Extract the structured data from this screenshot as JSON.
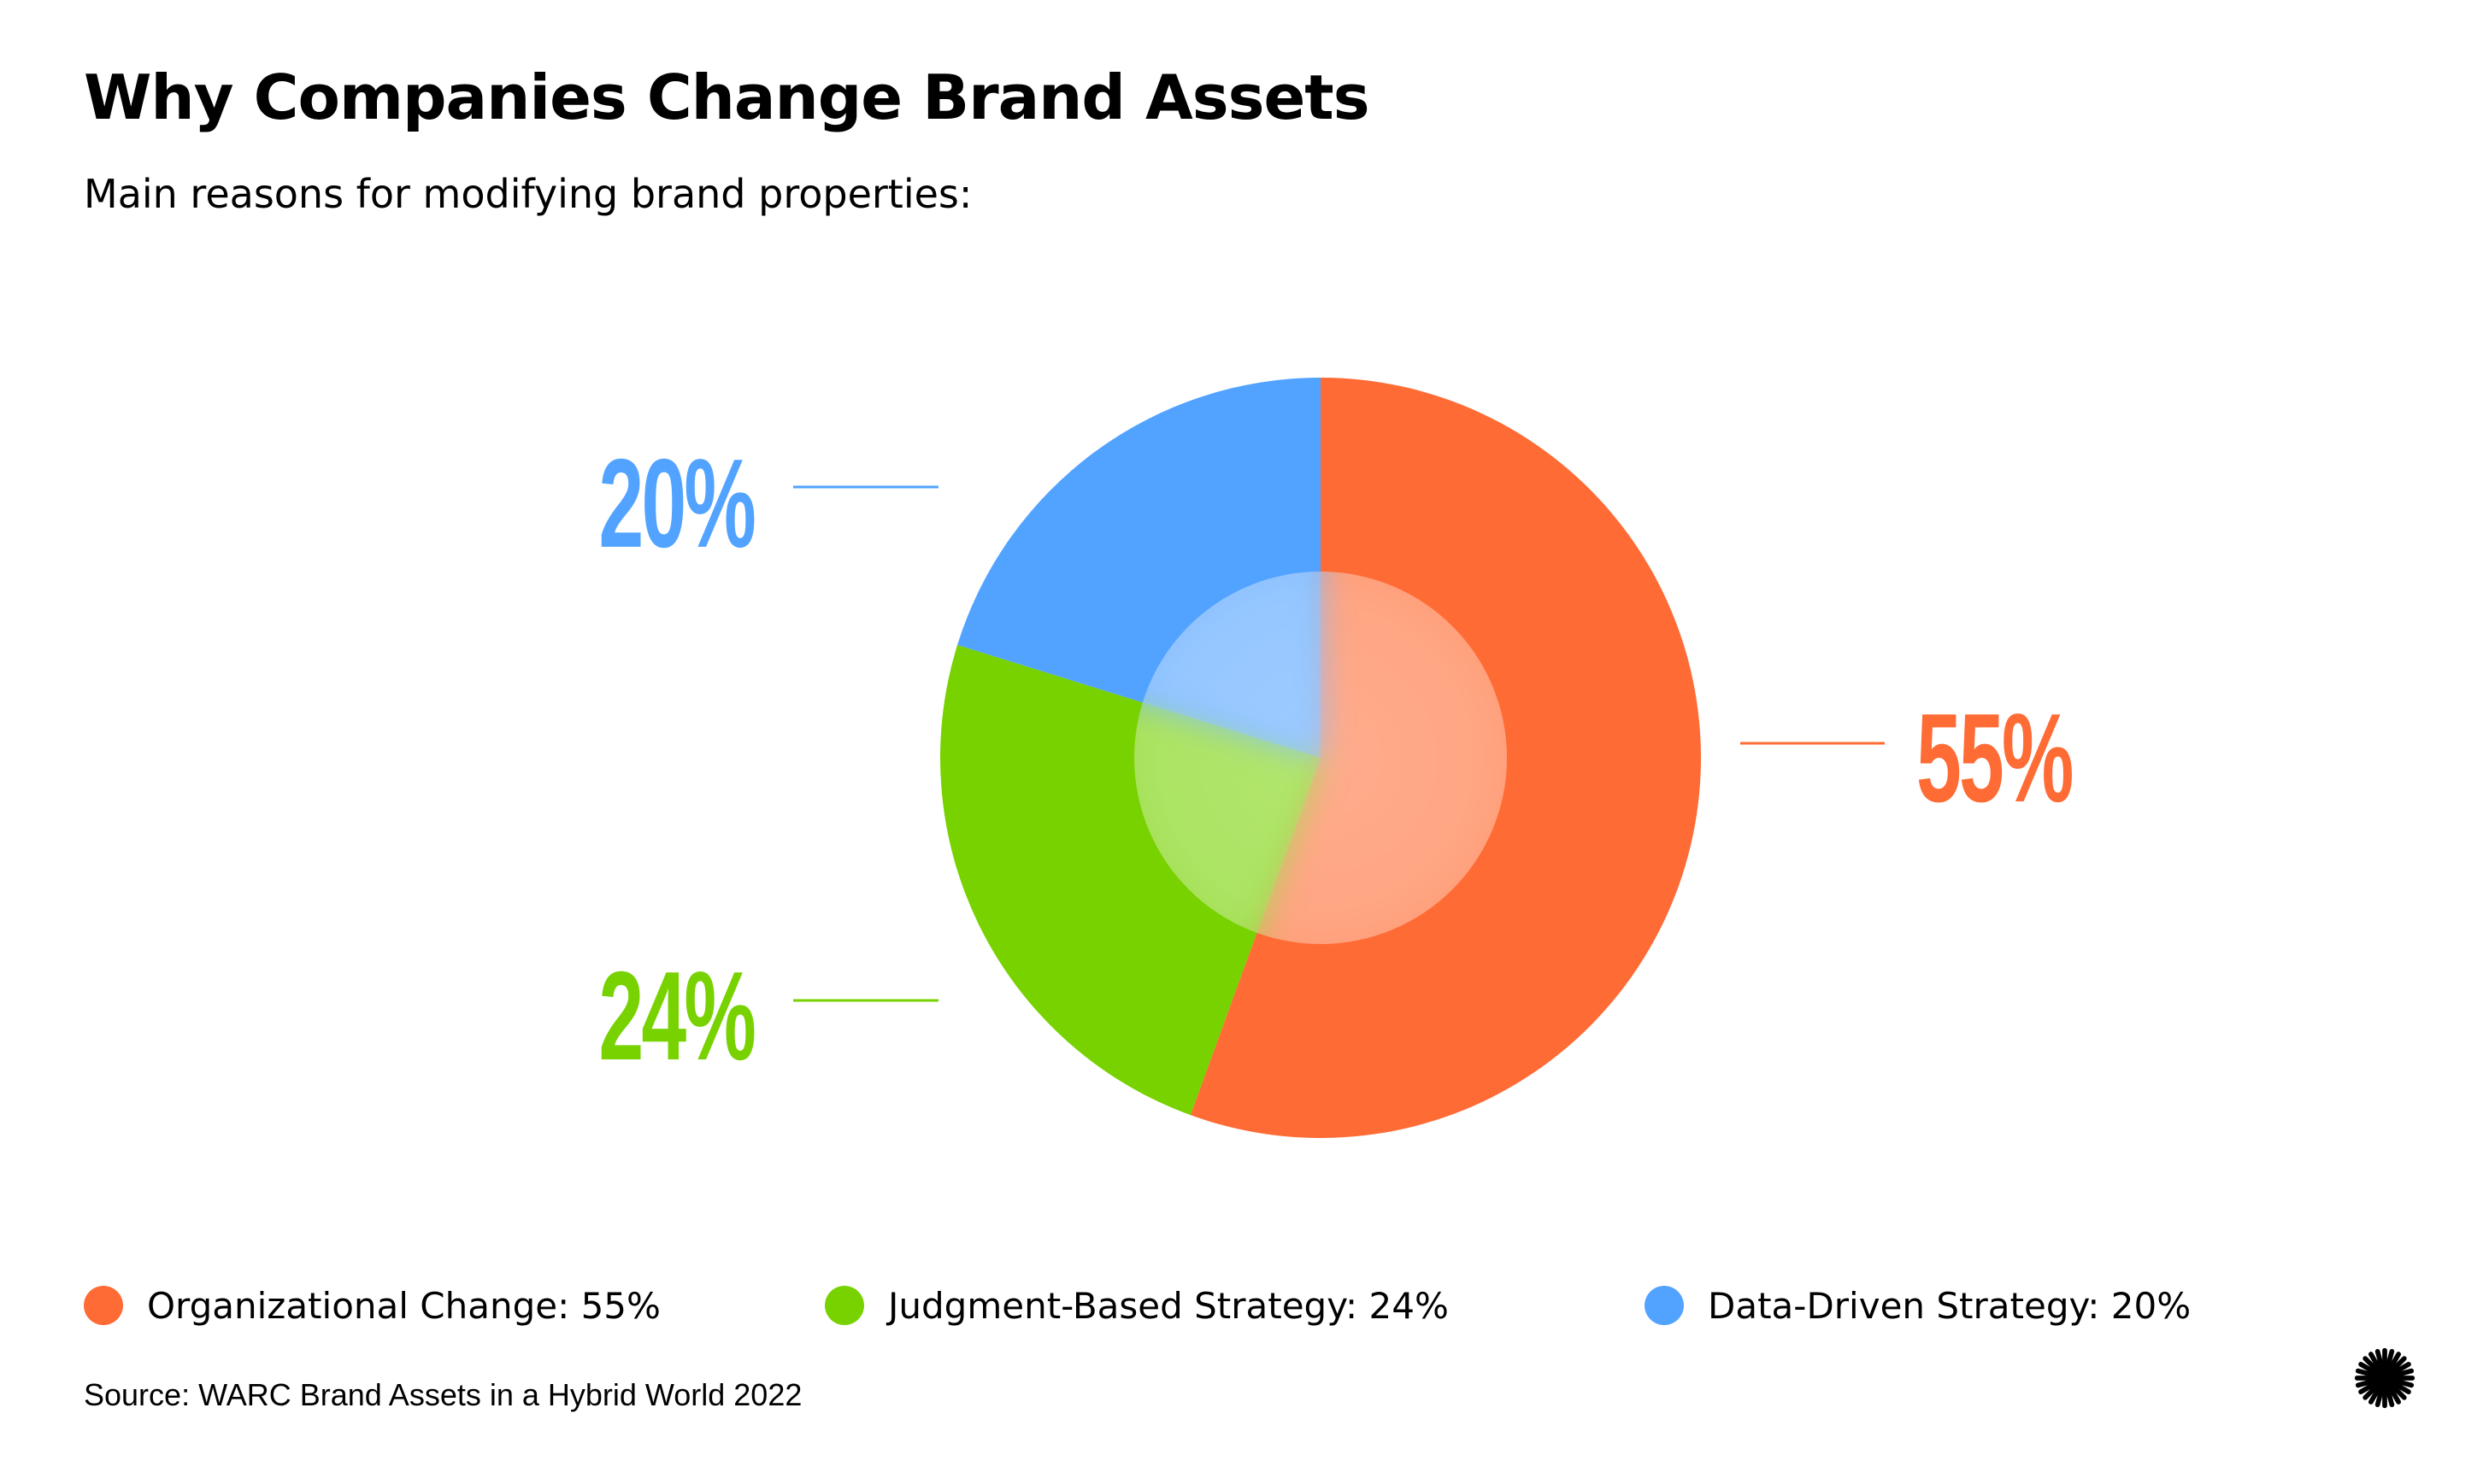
{
  "chart_data": {
    "type": "pie",
    "title": "Why Companies Change Brand Assets",
    "subtitle": "Main reasons for modifying brand properties:",
    "slices": [
      {
        "label": "Organizational Change",
        "value": 55,
        "value_label": "55%",
        "legend_text": "Organizational Change: 55%",
        "color": "#FF6B35"
      },
      {
        "label": "Judgment-Based Strategy",
        "value": 24,
        "value_label": "24%",
        "legend_text": "Judgment-Based Strategy: 24%",
        "color": "#77D200"
      },
      {
        "label": "Data-Driven Strategy",
        "value": 20,
        "value_label": "20%",
        "legend_text": "Data-Driven Strategy: 20%",
        "color": "#52A3FF"
      }
    ],
    "legend_position": "bottom",
    "source": "Source: WARC Brand Assets in a Hybrid World 2022"
  },
  "logo_icon": "starburst-icon"
}
